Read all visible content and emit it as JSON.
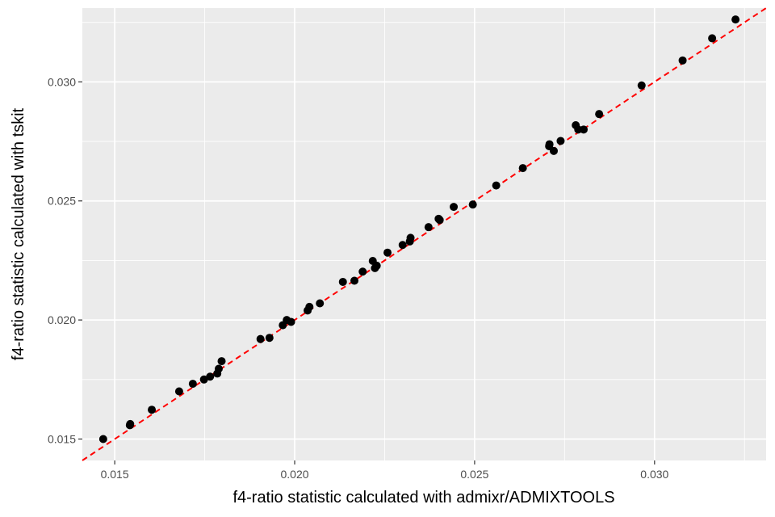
{
  "chart_data": {
    "type": "scatter",
    "title": "",
    "xlabel": "f4-ratio statistic calculated with admixr/ADMIXTOOLS",
    "ylabel": "f4-ratio statistic calculated with tskit",
    "xlim": [
      0.0141,
      0.0331
    ],
    "ylim": [
      0.0141,
      0.0331
    ],
    "x_ticks": [
      0.015,
      0.02,
      0.025,
      0.03
    ],
    "x_tick_labels": [
      "0.015",
      "0.020",
      "0.025",
      "0.030"
    ],
    "y_ticks": [
      0.015,
      0.02,
      0.025,
      0.03
    ],
    "y_tick_labels": [
      "0.015",
      "0.020",
      "0.025",
      "0.030"
    ],
    "grid": true,
    "panel_background": "#ebebeb",
    "grid_color": "#ffffff",
    "point_color": "#000000",
    "reference_line": {
      "slope": 1,
      "intercept": 0,
      "style": "dashed",
      "color": "#ff0000"
    },
    "points": [
      [
        0.01468,
        0.015
      ],
      [
        0.01542,
        0.01558
      ],
      [
        0.01543,
        0.01563
      ],
      [
        0.01603,
        0.01623
      ],
      [
        0.01679,
        0.017
      ],
      [
        0.01717,
        0.01732
      ],
      [
        0.01748,
        0.0175
      ],
      [
        0.01765,
        0.01762
      ],
      [
        0.01785,
        0.01775
      ],
      [
        0.01789,
        0.01795
      ],
      [
        0.01797,
        0.01827
      ],
      [
        0.01905,
        0.0192
      ],
      [
        0.0193,
        0.01925
      ],
      [
        0.01967,
        0.01978
      ],
      [
        0.01978,
        0.02
      ],
      [
        0.0199,
        0.01992
      ],
      [
        0.02036,
        0.0204
      ],
      [
        0.02041,
        0.02055
      ],
      [
        0.0207,
        0.0207
      ],
      [
        0.02134,
        0.0216
      ],
      [
        0.02166,
        0.02165
      ],
      [
        0.02189,
        0.02203
      ],
      [
        0.02217,
        0.02248
      ],
      [
        0.02223,
        0.02218
      ],
      [
        0.02228,
        0.02228
      ],
      [
        0.02258,
        0.02283
      ],
      [
        0.023,
        0.02315
      ],
      [
        0.0232,
        0.0233
      ],
      [
        0.02322,
        0.02345
      ],
      [
        0.02372,
        0.0239
      ],
      [
        0.024,
        0.02425
      ],
      [
        0.02403,
        0.0242
      ],
      [
        0.02442,
        0.02475
      ],
      [
        0.02495,
        0.02485
      ],
      [
        0.0256,
        0.02565
      ],
      [
        0.02634,
        0.02638
      ],
      [
        0.02707,
        0.0273
      ],
      [
        0.02708,
        0.02738
      ],
      [
        0.0272,
        0.0271
      ],
      [
        0.02739,
        0.02752
      ],
      [
        0.02781,
        0.02818
      ],
      [
        0.02788,
        0.028
      ],
      [
        0.02803,
        0.028
      ],
      [
        0.02846,
        0.02865
      ],
      [
        0.02964,
        0.02985
      ],
      [
        0.03078,
        0.0309
      ],
      [
        0.0316,
        0.03183
      ],
      [
        0.03225,
        0.03262
      ]
    ]
  }
}
